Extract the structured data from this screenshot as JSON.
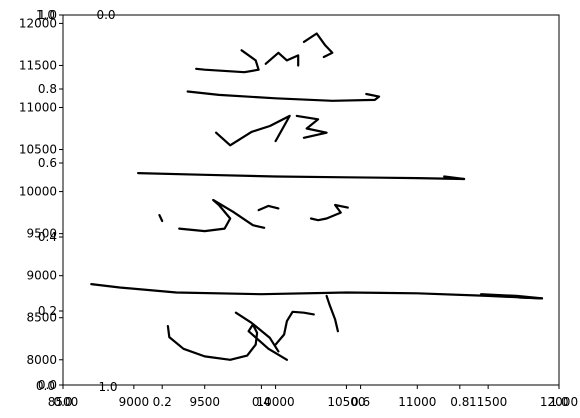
{
  "chart_data": {
    "type": "line",
    "title": "",
    "xlabel": "",
    "ylabel": "",
    "grid": false,
    "legend": "none",
    "line_color": "#000000",
    "overlay_axes": {
      "xlim": [
        0.0,
        1.0
      ],
      "ylim": [
        0.0,
        1.0
      ],
      "xticks": [
        "0.0",
        "0.2",
        "0.4",
        "0.6",
        "0.8",
        "1.0"
      ],
      "yticks": [
        "0.0",
        "0.2",
        "0.4",
        "0.6",
        "0.8",
        "1.0"
      ],
      "stray_labels": [
        "0.0",
        "1.0",
        "1.0",
        "0.0"
      ]
    },
    "main_axes": {
      "xlim": [
        8500,
        12000
      ],
      "ylim": [
        7700,
        12100
      ],
      "xticks": [
        "8500",
        "9000",
        "9500",
        "10000",
        "10500",
        "11000",
        "11500",
        "12000"
      ],
      "yticks": [
        "8000",
        "8500",
        "9000",
        "9500",
        "10000",
        "10500",
        "11000",
        "11500",
        "12000"
      ]
    },
    "series": [
      {
        "points": [
          [
            8700,
            8900
          ],
          [
            8900,
            8860
          ],
          [
            9300,
            8800
          ],
          [
            9900,
            8780
          ],
          [
            10500,
            8800
          ],
          [
            11000,
            8790
          ],
          [
            11500,
            8760
          ],
          [
            11880,
            8730
          ]
        ]
      },
      {
        "points": [
          [
            11450,
            8780
          ],
          [
            11700,
            8760
          ],
          [
            11880,
            8730
          ],
          [
            11720,
            8740
          ]
        ]
      },
      {
        "points": [
          [
            9240,
            8400
          ],
          [
            9250,
            8270
          ],
          [
            9350,
            8130
          ],
          [
            9500,
            8040
          ],
          [
            9680,
            8000
          ],
          [
            9800,
            8050
          ],
          [
            9860,
            8180
          ],
          [
            9870,
            8320
          ],
          [
            9840,
            8420
          ],
          [
            9810,
            8340
          ],
          [
            9950,
            8130
          ],
          [
            10080,
            8000
          ]
        ]
      },
      {
        "points": [
          [
            9720,
            8560
          ],
          [
            9830,
            8440
          ],
          [
            9960,
            8260
          ],
          [
            10020,
            8100
          ]
        ]
      },
      {
        "points": [
          [
            10000,
            8180
          ],
          [
            10060,
            8300
          ],
          [
            10080,
            8460
          ],
          [
            10120,
            8570
          ],
          [
            10200,
            8560
          ],
          [
            10270,
            8540
          ]
        ]
      },
      {
        "points": [
          [
            10360,
            8760
          ],
          [
            10380,
            8660
          ],
          [
            10420,
            8480
          ],
          [
            10440,
            8340
          ]
        ]
      },
      {
        "points": [
          [
            9030,
            10220
          ],
          [
            9500,
            10200
          ],
          [
            10000,
            10180
          ],
          [
            10500,
            10170
          ],
          [
            11000,
            10160
          ],
          [
            11330,
            10150
          ]
        ]
      },
      {
        "points": [
          [
            11190,
            10180
          ],
          [
            11330,
            10150
          ]
        ]
      },
      {
        "points": [
          [
            9320,
            9560
          ],
          [
            9500,
            9530
          ],
          [
            9640,
            9560
          ],
          [
            9680,
            9680
          ],
          [
            9600,
            9840
          ],
          [
            9560,
            9900
          ],
          [
            9700,
            9760
          ],
          [
            9840,
            9600
          ],
          [
            9920,
            9570
          ]
        ]
      },
      {
        "points": [
          [
            9180,
            9720
          ],
          [
            9200,
            9650
          ]
        ]
      },
      {
        "points": [
          [
            9880,
            9780
          ],
          [
            9950,
            9830
          ],
          [
            10020,
            9800
          ]
        ]
      },
      {
        "points": [
          [
            10250,
            9680
          ],
          [
            10300,
            9660
          ],
          [
            10360,
            9680
          ],
          [
            10460,
            9750
          ],
          [
            10420,
            9840
          ],
          [
            10510,
            9810
          ]
        ]
      },
      {
        "points": [
          [
            9580,
            10700
          ],
          [
            9680,
            10550
          ],
          [
            9830,
            10710
          ],
          [
            9960,
            10780
          ],
          [
            10100,
            10900
          ],
          [
            10000,
            10600
          ]
        ]
      },
      {
        "points": [
          [
            10150,
            10900
          ],
          [
            10300,
            10860
          ],
          [
            10220,
            10750
          ],
          [
            10360,
            10700
          ],
          [
            10200,
            10640
          ]
        ]
      },
      {
        "points": [
          [
            9380,
            11190
          ],
          [
            9600,
            11150
          ],
          [
            10000,
            11110
          ],
          [
            10400,
            11080
          ],
          [
            10700,
            11090
          ],
          [
            10730,
            11130
          ],
          [
            10640,
            11160
          ]
        ]
      },
      {
        "points": [
          [
            9760,
            11680
          ],
          [
            9860,
            11560
          ],
          [
            9880,
            11450
          ],
          [
            9780,
            11420
          ],
          [
            9500,
            11450
          ],
          [
            9440,
            11460
          ]
        ]
      },
      {
        "points": [
          [
            9930,
            11520
          ],
          [
            10020,
            11650
          ],
          [
            10080,
            11560
          ],
          [
            10160,
            11620
          ],
          [
            10160,
            11500
          ]
        ]
      },
      {
        "points": [
          [
            10200,
            11780
          ],
          [
            10290,
            11880
          ],
          [
            10350,
            11740
          ],
          [
            10400,
            11650
          ],
          [
            10340,
            11600
          ]
        ]
      }
    ]
  }
}
